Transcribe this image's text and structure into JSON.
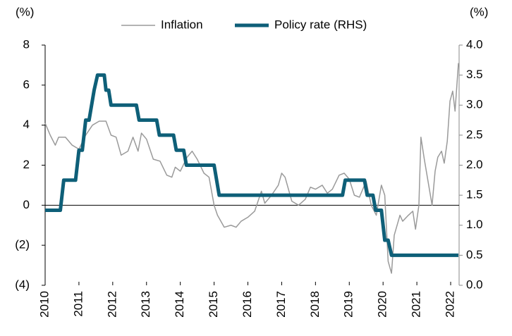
{
  "chart_data": {
    "type": "line",
    "y_label": "(%)",
    "y2_label": "(%)",
    "xlim": [
      2010,
      2022.25
    ],
    "xticks": [
      2010,
      2011,
      2012,
      2013,
      2014,
      2015,
      2016,
      2017,
      2018,
      2019,
      2020,
      2021,
      2022
    ],
    "ylim": [
      -4,
      8
    ],
    "yticks": [
      {
        "value": -4,
        "label": "(4)"
      },
      {
        "value": -2,
        "label": "(2)"
      },
      0,
      2,
      4,
      6,
      8
    ],
    "y2lim": [
      0,
      4
    ],
    "y2ticks": [
      {
        "value": 0,
        "label": "0.0"
      },
      0.5,
      {
        "value": 1,
        "label": "1.0"
      },
      1.5,
      {
        "value": 2,
        "label": "2.0"
      },
      2.5,
      {
        "value": 3,
        "label": "3.0"
      },
      3.5,
      {
        "value": 4,
        "label": "4.0"
      }
    ],
    "series": [
      {
        "name": "Inflation",
        "color": "#9a9a9a",
        "width": 1.5,
        "x": [
          2010.0,
          2010.15,
          2010.3,
          2010.4,
          2010.6,
          2010.8,
          2011.0,
          2011.2,
          2011.4,
          2011.6,
          2011.8,
          2011.95,
          2012.1,
          2012.25,
          2012.45,
          2012.6,
          2012.75,
          2012.85,
          2013.0,
          2013.2,
          2013.4,
          2013.6,
          2013.75,
          2013.85,
          2014.0,
          2014.2,
          2014.35,
          2014.5,
          2014.7,
          2014.85,
          2015.0,
          2015.1,
          2015.3,
          2015.5,
          2015.65,
          2015.8,
          2016.0,
          2016.2,
          2016.4,
          2016.5,
          2016.7,
          2016.9,
          2017.0,
          2017.1,
          2017.3,
          2017.5,
          2017.7,
          2017.85,
          2018.0,
          2018.2,
          2018.35,
          2018.5,
          2018.7,
          2018.85,
          2019.0,
          2019.15,
          2019.3,
          2019.5,
          2019.65,
          2019.8,
          2019.95,
          2020.05,
          2020.15,
          2020.25,
          2020.33,
          2020.5,
          2020.58,
          2020.75,
          2020.88,
          2020.96,
          2021.06,
          2021.12,
          2021.22,
          2021.33,
          2021.45,
          2021.54,
          2021.62,
          2021.73,
          2021.81,
          2021.9,
          2021.98,
          2022.06,
          2022.13,
          2022.23
        ],
        "values": [
          4.1,
          3.5,
          3.0,
          3.4,
          3.4,
          3.0,
          2.8,
          3.5,
          4.0,
          4.2,
          4.2,
          3.5,
          3.4,
          2.5,
          2.7,
          3.4,
          2.7,
          3.6,
          3.3,
          2.3,
          2.2,
          1.5,
          1.4,
          1.9,
          1.7,
          2.4,
          2.7,
          2.3,
          1.6,
          1.4,
          0.0,
          -0.5,
          -1.1,
          -1.0,
          -1.1,
          -0.8,
          -0.6,
          -0.3,
          0.7,
          0.1,
          0.5,
          1.0,
          1.6,
          1.4,
          0.2,
          0.0,
          0.3,
          0.9,
          0.8,
          1.0,
          0.6,
          0.8,
          1.5,
          1.6,
          1.3,
          0.5,
          0.4,
          1.2,
          0.0,
          -0.5,
          1.0,
          0.5,
          -2.8,
          -3.4,
          -1.5,
          -0.5,
          -0.8,
          -0.5,
          -0.3,
          -1.2,
          0.0,
          3.4,
          2.3,
          1.2,
          0.0,
          1.7,
          2.4,
          2.7,
          2.1,
          3.2,
          5.2,
          5.7,
          4.7,
          7.1
        ]
      },
      {
        "name": "Policy rate (RHS)",
        "color": "#0e5f78",
        "width": 5,
        "axis": "y2",
        "x": [
          2010.0,
          2010.45,
          2010.55,
          2010.9,
          2011.0,
          2011.1,
          2011.2,
          2011.3,
          2011.45,
          2011.55,
          2011.75,
          2011.8,
          2011.88,
          2011.95,
          2012.7,
          2012.78,
          2013.3,
          2013.38,
          2013.8,
          2013.88,
          2014.1,
          2014.18,
          2015.0,
          2015.15,
          2018.8,
          2018.88,
          2019.45,
          2019.53,
          2019.7,
          2019.78,
          2019.95,
          2020.05,
          2020.15,
          2020.25,
          2022.23
        ],
        "values": [
          1.25,
          1.25,
          1.75,
          1.75,
          2.25,
          2.25,
          2.75,
          2.75,
          3.25,
          3.5,
          3.5,
          3.25,
          3.25,
          3.0,
          3.0,
          2.75,
          2.75,
          2.5,
          2.5,
          2.25,
          2.25,
          2.0,
          2.0,
          1.5,
          1.5,
          1.75,
          1.75,
          1.5,
          1.5,
          1.25,
          1.25,
          0.75,
          0.75,
          0.5,
          0.5
        ]
      }
    ]
  }
}
